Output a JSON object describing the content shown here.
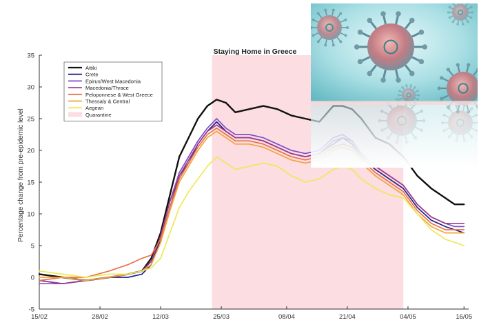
{
  "chart_data": {
    "type": "line",
    "title": "Staying Home in Greece",
    "xlabel": "",
    "ylabel": "Percentage change from pre-epidemic level",
    "ylim": [
      -5,
      35
    ],
    "yticks": [
      -5,
      0,
      5,
      10,
      15,
      20,
      25,
      30,
      35
    ],
    "xlim": [
      "2020-02-15",
      "2020-05-17"
    ],
    "xtick_labels": [
      "15/02",
      "28/02",
      "12/03",
      "25/03",
      "08/04",
      "21/04",
      "04/05",
      "16/05"
    ],
    "xtick_dates": [
      "2020-02-15",
      "2020-02-28",
      "2020-03-12",
      "2020-03-25",
      "2020-04-08",
      "2020-04-21",
      "2020-05-04",
      "2020-05-16"
    ],
    "grid": false,
    "legend_position": "top-left",
    "quarantine": {
      "label": "Quarantine",
      "start": "2020-03-23",
      "end": "2020-05-03",
      "color": "#fbdde2"
    },
    "x": [
      "2020-02-15",
      "2020-02-20",
      "2020-02-25",
      "2020-03-01",
      "2020-03-05",
      "2020-03-08",
      "2020-03-10",
      "2020-03-12",
      "2020-03-14",
      "2020-03-16",
      "2020-03-18",
      "2020-03-20",
      "2020-03-22",
      "2020-03-24",
      "2020-03-26",
      "2020-03-28",
      "2020-03-31",
      "2020-04-03",
      "2020-04-06",
      "2020-04-09",
      "2020-04-12",
      "2020-04-15",
      "2020-04-18",
      "2020-04-20",
      "2020-04-22",
      "2020-04-24",
      "2020-04-27",
      "2020-04-30",
      "2020-05-03",
      "2020-05-06",
      "2020-05-09",
      "2020-05-12",
      "2020-05-14",
      "2020-05-16"
    ],
    "series": [
      {
        "name": "Attiki",
        "color": "#111111",
        "values": [
          0.5,
          0,
          -0.5,
          0,
          0.5,
          1,
          3,
          7,
          13,
          19,
          22,
          25,
          27,
          28,
          27.5,
          26,
          26.5,
          27,
          26.5,
          25.5,
          25,
          24.5,
          27,
          27,
          26.5,
          25,
          22,
          21,
          19,
          16,
          14,
          12.5,
          11.5,
          11.5
        ]
      },
      {
        "name": "Crete",
        "color": "#20208a",
        "values": [
          -0.5,
          -1,
          -0.5,
          0,
          0,
          0.5,
          2,
          6,
          11,
          16,
          18,
          21,
          23,
          24.5,
          23,
          22,
          22,
          21.5,
          20.5,
          19.5,
          19,
          19.5,
          21,
          22,
          21,
          19,
          17,
          15.5,
          14,
          11,
          9,
          8,
          7.5,
          7
        ]
      },
      {
        "name": "Epirus/West Macedonia",
        "color": "#7f4fc9",
        "values": [
          -1,
          -1,
          -0.5,
          0,
          0.5,
          1,
          2.5,
          6.5,
          12,
          16.5,
          19,
          21.5,
          23.5,
          25,
          23.5,
          22.5,
          22.5,
          22,
          21,
          20,
          19.5,
          20,
          22,
          22.5,
          21.5,
          19.5,
          17.5,
          16,
          14.5,
          11.5,
          9.5,
          8.5,
          8,
          8
        ]
      },
      {
        "name": "Macedonia/Thrace",
        "color": "#9c3d8a",
        "values": [
          -0.5,
          -1,
          -0.5,
          0,
          0.5,
          1,
          2.5,
          6.5,
          12,
          16,
          18.5,
          21,
          23,
          24,
          23,
          22,
          22,
          21.5,
          20.5,
          19.5,
          19,
          19.5,
          21.5,
          22,
          21.5,
          19.5,
          17.5,
          16,
          14.5,
          11.5,
          9.5,
          8.5,
          8.5,
          8.5
        ]
      },
      {
        "name": "Peloponnese & West Greece",
        "color": "#e8724a",
        "values": [
          -0.5,
          0,
          0,
          1,
          2,
          3,
          3.5,
          6,
          11,
          15.5,
          18,
          20.5,
          22.5,
          23.5,
          22.5,
          21.5,
          21.5,
          21,
          20,
          19,
          18.5,
          19,
          20.5,
          21,
          20.5,
          18.5,
          16.5,
          15,
          13.5,
          10.5,
          8.5,
          7.5,
          7.5,
          7.5
        ]
      },
      {
        "name": "Thessaly & Central",
        "color": "#f3a33a",
        "values": [
          0,
          0,
          -0.5,
          0,
          0.5,
          1,
          2,
          5.5,
          10.5,
          15,
          17.5,
          20,
          22,
          23,
          22,
          21,
          21,
          20.5,
          19.5,
          18.5,
          18,
          18.5,
          20,
          20.5,
          20,
          18,
          16,
          14.5,
          13,
          10,
          8,
          7,
          7,
          7
        ]
      },
      {
        "name": "Aegean",
        "color": "#efe85a",
        "values": [
          1,
          0.5,
          0,
          0.5,
          0.5,
          1,
          1.5,
          3,
          7,
          11,
          13.5,
          15.5,
          17.5,
          19,
          18,
          17,
          17.5,
          18,
          17.5,
          16,
          15,
          15.5,
          17,
          17.5,
          17,
          15.5,
          14,
          13,
          12.5,
          10,
          7.5,
          6,
          5.5,
          5
        ]
      }
    ]
  }
}
